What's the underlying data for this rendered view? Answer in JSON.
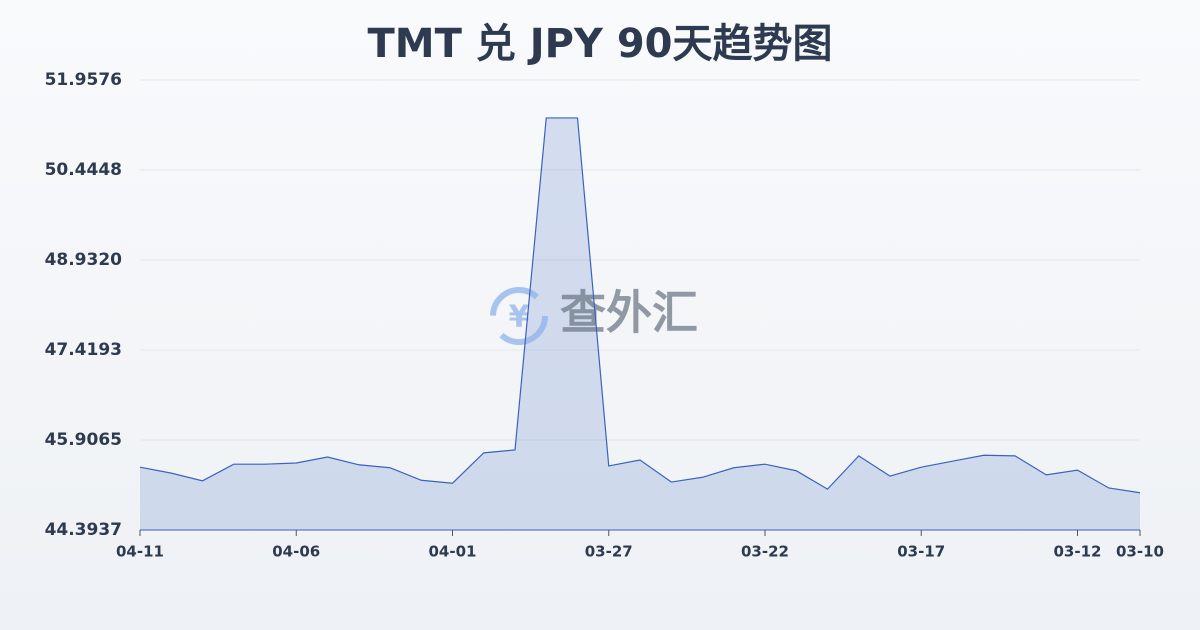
{
  "chart_data": {
    "type": "area",
    "title": "TMT 兑 JPY 90天趋势图",
    "watermark": "查外汇",
    "categories": [
      "04-11",
      null,
      null,
      null,
      null,
      "04-06",
      null,
      null,
      null,
      null,
      "04-01",
      null,
      null,
      null,
      null,
      "03-27",
      null,
      null,
      null,
      null,
      "03-22",
      null,
      null,
      null,
      null,
      "03-17",
      null,
      null,
      null,
      null,
      "03-12",
      null,
      "03-10"
    ],
    "values": [
      45.45,
      45.35,
      45.22,
      45.5,
      45.5,
      45.52,
      45.62,
      45.49,
      45.44,
      45.23,
      45.18,
      45.69,
      45.74,
      51.32,
      51.32,
      45.47,
      45.57,
      45.2,
      45.28,
      45.44,
      45.5,
      45.39,
      45.08,
      45.64,
      45.3,
      45.45,
      45.55,
      45.65,
      45.64,
      45.32,
      45.4,
      45.1,
      45.02
    ],
    "color": "#3a63bd",
    "ylim": [
      44.3937,
      51.9576
    ],
    "yticks": [
      44.3937,
      45.9065,
      47.4193,
      {
        "value": 48.932,
        "label": "48.9320"
      },
      50.4448,
      51.9576
    ],
    "grid": true
  }
}
